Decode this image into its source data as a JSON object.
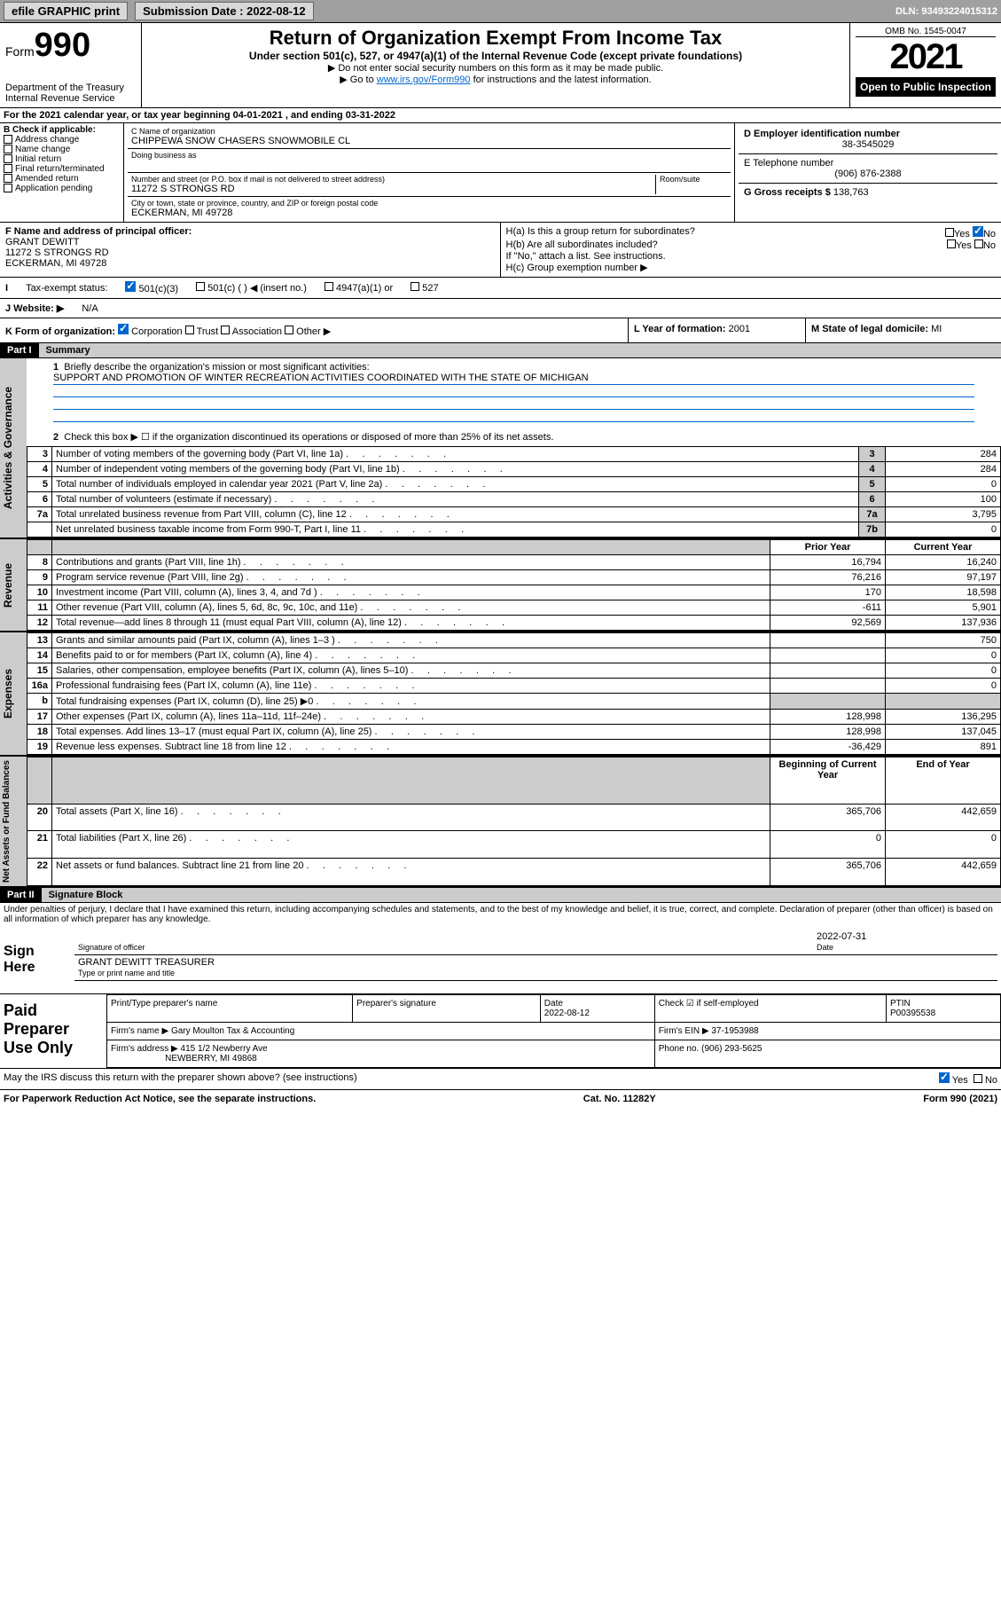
{
  "topbar": {
    "efile": "efile GRAPHIC print",
    "submission_lbl": "Submission Date : 2022-08-12",
    "dln": "DLN: 93493224015312"
  },
  "header": {
    "form_word": "Form",
    "form_num": "990",
    "dept": "Department of the Treasury",
    "service": "Internal Revenue Service",
    "title": "Return of Organization Exempt From Income Tax",
    "subtitle": "Under section 501(c), 527, or 4947(a)(1) of the Internal Revenue Code (except private foundations)",
    "note1": "▶ Do not enter social security numbers on this form as it may be made public.",
    "note2_pre": "▶ Go to ",
    "note2_link": "www.irs.gov/Form990",
    "note2_post": " for instructions and the latest information.",
    "omb": "OMB No. 1545-0047",
    "year": "2021",
    "open": "Open to Public Inspection"
  },
  "section_a": {
    "taxyear": "For the 2021 calendar year, or tax year beginning 04-01-2021   , and ending 03-31-2022",
    "b_lbl": "B Check if applicable:",
    "checks": [
      "Address change",
      "Name change",
      "Initial return",
      "Final return/terminated",
      "Amended return",
      "Application pending"
    ],
    "c_lbl": "C Name of organization",
    "c_name": "CHIPPEWA SNOW CHASERS SNOWMOBILE CL",
    "dba": "Doing business as",
    "addr_lbl": "Number and street (or P.O. box if mail is not delivered to street address)",
    "room_lbl": "Room/suite",
    "addr": "11272 S STRONGS RD",
    "city_lbl": "City or town, state or province, country, and ZIP or foreign postal code",
    "city": "ECKERMAN, MI  49728",
    "d_lbl": "D Employer identification number",
    "d_val": "38-3545029",
    "e_lbl": "E Telephone number",
    "e_val": "(906) 876-2388",
    "g_lbl": "G Gross receipts $",
    "g_val": "138,763"
  },
  "section_f": {
    "f_lbl": "F Name and address of principal officer:",
    "f_name": "GRANT DEWITT",
    "f_addr1": "11272 S STRONGS RD",
    "f_addr2": "ECKERMAN, MI  49728",
    "ha": "H(a)  Is this a group return for subordinates?",
    "hb": "H(b)  Are all subordinates included?",
    "hnote": "If \"No,\" attach a list. See instructions.",
    "hc": "H(c)  Group exemption number ▶",
    "yes": "Yes",
    "no": "No"
  },
  "section_i": {
    "lbl": "Tax-exempt status:",
    "opt1": "501(c)(3)",
    "opt2": "501(c) (   ) ◀ (insert no.)",
    "opt3": "4947(a)(1) or",
    "opt4": "527"
  },
  "section_j": {
    "lbl": "J   Website: ▶",
    "val": "N/A"
  },
  "section_k": {
    "lbl": "K Form of organization:",
    "corp": "Corporation",
    "trust": "Trust",
    "assoc": "Association",
    "other": "Other ▶",
    "l_lbl": "L Year of formation:",
    "l_val": "2001",
    "m_lbl": "M State of legal domicile:",
    "m_val": "MI"
  },
  "part1": {
    "hdr": "Part I",
    "title": "Summary",
    "mission_lbl": "Briefly describe the organization's mission or most significant activities:",
    "mission": "SUPPORT AND PROMOTION OF WINTER RECREATION ACTIVITIES COORDINATED WITH THE STATE OF MICHIGAN",
    "line2": "Check this box ▶ ☐  if the organization discontinued its operations or disposed of more than 25% of its net assets."
  },
  "governance": {
    "sidebar": "Activities & Governance",
    "rows": [
      {
        "n": "3",
        "t": "Number of voting members of the governing body (Part VI, line 1a)",
        "b": "3",
        "v": "284"
      },
      {
        "n": "4",
        "t": "Number of independent voting members of the governing body (Part VI, line 1b)",
        "b": "4",
        "v": "284"
      },
      {
        "n": "5",
        "t": "Total number of individuals employed in calendar year 2021 (Part V, line 2a)",
        "b": "5",
        "v": "0"
      },
      {
        "n": "6",
        "t": "Total number of volunteers (estimate if necessary)",
        "b": "6",
        "v": "100"
      },
      {
        "n": "7a",
        "t": "Total unrelated business revenue from Part VIII, column (C), line 12",
        "b": "7a",
        "v": "3,795"
      },
      {
        "n": "",
        "t": "Net unrelated business taxable income from Form 990-T, Part I, line 11",
        "b": "7b",
        "v": "0"
      }
    ]
  },
  "revenue": {
    "sidebar": "Revenue",
    "hdr_prior": "Prior Year",
    "hdr_curr": "Current Year",
    "rows": [
      {
        "n": "8",
        "t": "Contributions and grants (Part VIII, line 1h)",
        "p": "16,794",
        "c": "16,240"
      },
      {
        "n": "9",
        "t": "Program service revenue (Part VIII, line 2g)",
        "p": "76,216",
        "c": "97,197"
      },
      {
        "n": "10",
        "t": "Investment income (Part VIII, column (A), lines 3, 4, and 7d )",
        "p": "170",
        "c": "18,598"
      },
      {
        "n": "11",
        "t": "Other revenue (Part VIII, column (A), lines 5, 6d, 8c, 9c, 10c, and 11e)",
        "p": "-611",
        "c": "5,901"
      },
      {
        "n": "12",
        "t": "Total revenue—add lines 8 through 11 (must equal Part VIII, column (A), line 12)",
        "p": "92,569",
        "c": "137,936"
      }
    ]
  },
  "expenses": {
    "sidebar": "Expenses",
    "rows": [
      {
        "n": "13",
        "t": "Grants and similar amounts paid (Part IX, column (A), lines 1–3 )",
        "p": "",
        "c": "750"
      },
      {
        "n": "14",
        "t": "Benefits paid to or for members (Part IX, column (A), line 4)",
        "p": "",
        "c": "0"
      },
      {
        "n": "15",
        "t": "Salaries, other compensation, employee benefits (Part IX, column (A), lines 5–10)",
        "p": "",
        "c": "0"
      },
      {
        "n": "16a",
        "t": "Professional fundraising fees (Part IX, column (A), line 11e)",
        "p": "",
        "c": "0"
      },
      {
        "n": "b",
        "t": "Total fundraising expenses (Part IX, column (D), line 25) ▶0",
        "p": "shade",
        "c": "shade"
      },
      {
        "n": "17",
        "t": "Other expenses (Part IX, column (A), lines 11a–11d, 11f–24e)",
        "p": "128,998",
        "c": "136,295"
      },
      {
        "n": "18",
        "t": "Total expenses. Add lines 13–17 (must equal Part IX, column (A), line 25)",
        "p": "128,998",
        "c": "137,045"
      },
      {
        "n": "19",
        "t": "Revenue less expenses. Subtract line 18 from line 12",
        "p": "-36,429",
        "c": "891"
      }
    ]
  },
  "netassets": {
    "sidebar": "Net Assets or Fund Balances",
    "hdr_prior": "Beginning of Current Year",
    "hdr_curr": "End of Year",
    "rows": [
      {
        "n": "20",
        "t": "Total assets (Part X, line 16)",
        "p": "365,706",
        "c": "442,659"
      },
      {
        "n": "21",
        "t": "Total liabilities (Part X, line 26)",
        "p": "0",
        "c": "0"
      },
      {
        "n": "22",
        "t": "Net assets or fund balances. Subtract line 21 from line 20",
        "p": "365,706",
        "c": "442,659"
      }
    ]
  },
  "part2": {
    "hdr": "Part II",
    "title": "Signature Block",
    "penalty": "Under penalties of perjury, I declare that I have examined this return, including accompanying schedules and statements, and to the best of my knowledge and belief, it is true, correct, and complete. Declaration of preparer (other than officer) is based on all information of which preparer has any knowledge."
  },
  "sign": {
    "lbl": "Sign Here",
    "sig_lbl": "Signature of officer",
    "date_lbl": "Date",
    "date_val": "2022-07-31",
    "name": "GRANT DEWITT TREASURER",
    "name_lbl": "Type or print name and title"
  },
  "prep": {
    "lbl": "Paid Preparer Use Only",
    "h1": "Print/Type preparer's name",
    "h2": "Preparer's signature",
    "h3": "Date",
    "h3v": "2022-08-12",
    "h4": "Check ☑ if self-employed",
    "h5": "PTIN",
    "h5v": "P00395538",
    "firm_lbl": "Firm's name    ▶",
    "firm": "Gary Moulton Tax & Accounting",
    "ein_lbl": "Firm's EIN ▶",
    "ein": "37-1953988",
    "addr_lbl": "Firm's address ▶",
    "addr1": "415 1/2 Newberry Ave",
    "addr2": "NEWBERRY, MI  49868",
    "phone_lbl": "Phone no.",
    "phone": "(906) 293-5625",
    "discuss": "May the IRS discuss this return with the preparer shown above? (see instructions)"
  },
  "footer": {
    "left": "For Paperwork Reduction Act Notice, see the separate instructions.",
    "mid": "Cat. No. 11282Y",
    "right": "Form 990 (2021)"
  }
}
